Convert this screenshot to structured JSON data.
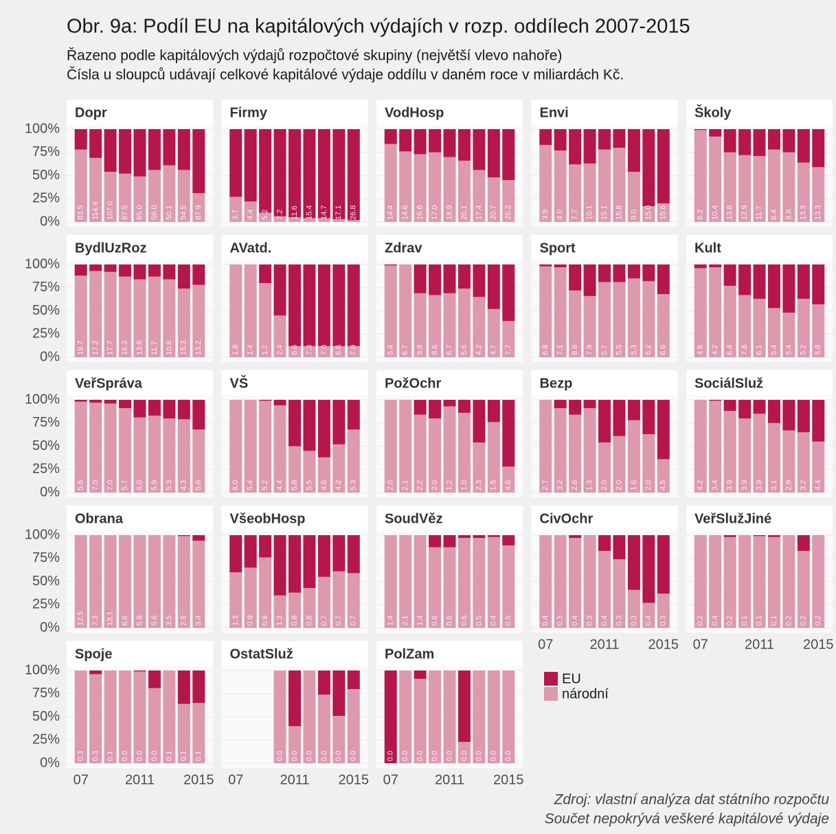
{
  "chart_data": {
    "type": "bar",
    "stacked": true,
    "title": "Obr. 9a: Podíl EU na kapitálových výdajích v rozp. oddílech 2007-2015",
    "subtitle": [
      "Řazeno podle kapitálových výdajů rozpočtové skupiny (největší vlevo nahoře)",
      "Čísla u sloupců udávají celkové kapitálové výdaje oddílu v daném roce v miliardách Kč."
    ],
    "source": [
      "Zdroj: vlastní analýza dat státního rozpočtu",
      "Součet nepokrývá veškeré kapitálové výdaje"
    ],
    "categories": [
      "07",
      null,
      null,
      null,
      "2011",
      null,
      null,
      null,
      "2015"
    ],
    "ylim": [
      0,
      100
    ],
    "yticks": [
      {
        "value": 0,
        "label": "0%"
      },
      {
        "value": 25,
        "label": "25%"
      },
      {
        "value": 50,
        "label": "50%"
      },
      {
        "value": 75,
        "label": "75%"
      },
      {
        "value": 100,
        "label": "100%"
      }
    ],
    "grid": true,
    "series": [
      {
        "name": "EU",
        "color": "#b5174b"
      },
      {
        "name": "národní",
        "color": "#dc9aac"
      }
    ],
    "facets": [
      {
        "title": "Dopr",
        "values": [
          [
            22,
            31,
            46,
            48,
            51,
            44,
            39,
            44,
            69
          ],
          [
            78,
            69,
            54,
            52,
            49,
            56,
            61,
            56,
            31
          ]
        ],
        "totals": [
          83.5,
          114.4,
          107.0,
          87.5,
          65.0,
          58.0,
          50.1,
          54.5,
          87.9
        ],
        "value_labels": [
          "83.5",
          "114.4",
          "107.0",
          "87.5",
          "65.0",
          "58.0",
          "50.1",
          "54.5",
          "87.9"
        ]
      },
      {
        "title": "Firmy",
        "values": [
          [
            73,
            78,
            90,
            94,
            95,
            96,
            96,
            97,
            98
          ],
          [
            27,
            22,
            10,
            6,
            5,
            4,
            4,
            3,
            2
          ]
        ],
        "totals": [
          3.7,
          4.4,
          5.2,
          7.2,
          11.6,
          15.4,
          14.7,
          17.1,
          26.8
        ],
        "value_labels": [
          "3.7",
          "4.4",
          "5.2",
          "7.2",
          "11.6",
          "15.4",
          "14.7",
          "17.1",
          "26.8"
        ]
      },
      {
        "title": "VodHosp",
        "values": [
          [
            16,
            24,
            27,
            25,
            30,
            34,
            44,
            52,
            55
          ],
          [
            84,
            76,
            73,
            75,
            70,
            66,
            56,
            48,
            45
          ]
        ],
        "totals": [
          14.4,
          14.6,
          16.6,
          17.0,
          18.9,
          20.1,
          17.4,
          20.7,
          25.2
        ],
        "value_labels": [
          "14.4",
          "14.6",
          "16.6",
          "17.0",
          "18.9",
          "20.1",
          "17.4",
          "20.7",
          "25.2"
        ]
      },
      {
        "title": "Envi",
        "values": [
          [
            17,
            23,
            38,
            37,
            22,
            20,
            46,
            83,
            80
          ],
          [
            83,
            77,
            62,
            63,
            78,
            80,
            54,
            17,
            20
          ]
        ],
        "totals": [
          3.9,
          4.0,
          7.7,
          10.1,
          15.1,
          15.8,
          9.0,
          15.0,
          15.6
        ],
        "value_labels": [
          "3.9",
          "4.0",
          "7.7",
          "10.1",
          "15.1",
          "15.8",
          "9.0",
          "15.0",
          "15.6"
        ]
      },
      {
        "title": "Školy",
        "values": [
          [
            1,
            8,
            25,
            28,
            29,
            22,
            25,
            36,
            41
          ],
          [
            99,
            92,
            75,
            72,
            71,
            78,
            75,
            64,
            59
          ]
        ],
        "totals": [
          8.2,
          10.4,
          13.8,
          12.9,
          11.7,
          8.4,
          9.8,
          13.3,
          13.3
        ],
        "value_labels": [
          "8.2",
          "10.4",
          "13.8",
          "12.9",
          "11.7",
          "8.4",
          "9.8",
          "13.3",
          "13.3"
        ]
      },
      {
        "title": "BydlUzRoz",
        "values": [
          [
            12,
            7,
            8,
            13,
            16,
            13,
            16,
            26,
            22
          ],
          [
            88,
            93,
            92,
            87,
            84,
            87,
            84,
            74,
            78
          ]
        ],
        "totals": [
          19.7,
          17.2,
          17.7,
          16.3,
          13.6,
          11.7,
          10.8,
          15.3,
          13.2
        ],
        "value_labels": [
          "19.7",
          "17.2",
          "17.7",
          "16.3",
          "13.6",
          "11.7",
          "10.8",
          "15.3",
          "13.2"
        ]
      },
      {
        "title": "AVatd.",
        "values": [
          [
            0,
            0,
            20,
            55,
            88,
            88,
            88,
            88,
            88
          ],
          [
            100,
            100,
            80,
            45,
            12,
            12,
            12,
            12,
            12
          ]
        ],
        "totals": [
          1.8,
          1.4,
          1.7,
          2.4,
          8.6,
          7.3,
          7.0,
          6.6,
          7.9
        ],
        "value_labels": [
          "1.8",
          "1.4",
          "1.7",
          "2.4",
          "8.6",
          "7.3",
          "7.0",
          "6.6",
          "7.9"
        ]
      },
      {
        "title": "Zdrav",
        "values": [
          [
            1,
            0,
            31,
            33,
            31,
            26,
            35,
            48,
            61
          ],
          [
            99,
            100,
            69,
            67,
            69,
            74,
            65,
            52,
            39
          ]
        ],
        "totals": [
          5.4,
          6.7,
          9.9,
          8.6,
          6.7,
          5.6,
          4.2,
          4.7,
          7.7
        ],
        "value_labels": [
          "5.4",
          "6.7",
          "9.9",
          "8.6",
          "6.7",
          "5.6",
          "4.2",
          "4.7",
          "7.7"
        ]
      },
      {
        "title": "Sport",
        "values": [
          [
            2,
            3,
            28,
            34,
            19,
            19,
            15,
            18,
            32
          ],
          [
            98,
            97,
            72,
            66,
            81,
            81,
            85,
            82,
            68
          ]
        ],
        "totals": [
          6.8,
          7.1,
          8.8,
          7.9,
          5.7,
          5.5,
          5.3,
          6.2,
          6.6
        ],
        "value_labels": [
          "6.8",
          "7.1",
          "8.8",
          "7.9",
          "5.7",
          "5.5",
          "5.3",
          "6.2",
          "6.6"
        ]
      },
      {
        "title": "Kult",
        "values": [
          [
            4,
            3,
            23,
            33,
            37,
            47,
            52,
            37,
            43
          ],
          [
            96,
            97,
            77,
            67,
            63,
            53,
            48,
            63,
            57
          ]
        ],
        "totals": [
          4.6,
          4.2,
          6.4,
          7.8,
          6.1,
          5.4,
          5.4,
          5.2,
          5.8
        ],
        "value_labels": [
          "4.6",
          "4.2",
          "6.4",
          "7.8",
          "6.1",
          "5.4",
          "5.4",
          "5.2",
          "5.8"
        ]
      },
      {
        "title": "VeřSpráva",
        "values": [
          [
            2,
            3,
            4,
            9,
            19,
            17,
            20,
            21,
            32
          ],
          [
            98,
            97,
            96,
            91,
            81,
            83,
            80,
            79,
            68
          ]
        ],
        "totals": [
          5.6,
          7.0,
          7.0,
          5.7,
          6.0,
          5.9,
          5.3,
          4.3,
          5.6
        ],
        "value_labels": [
          "5.6",
          "7.0",
          "7.0",
          "5.7",
          "6.0",
          "5.9",
          "5.3",
          "4.3",
          "5.6"
        ]
      },
      {
        "title": "VŠ",
        "values": [
          [
            0,
            0,
            1,
            6,
            50,
            55,
            62,
            48,
            32
          ],
          [
            100,
            100,
            99,
            94,
            50,
            45,
            38,
            52,
            68
          ]
        ],
        "totals": [
          6.0,
          5.4,
          5.2,
          4.4,
          5.8,
          5.5,
          4.6,
          4.2,
          5.3
        ],
        "value_labels": [
          "6.0",
          "5.4",
          "5.2",
          "4.4",
          "5.8",
          "5.5",
          "4.6",
          "4.2",
          "5.3"
        ]
      },
      {
        "title": "PožOchr",
        "values": [
          [
            0,
            0,
            16,
            20,
            7,
            14,
            46,
            24,
            72
          ],
          [
            100,
            100,
            84,
            80,
            93,
            86,
            54,
            76,
            28
          ]
        ],
        "totals": [
          2.0,
          2.1,
          2.2,
          2.0,
          1.2,
          1.0,
          2.3,
          1.5,
          4.6
        ],
        "value_labels": [
          "2.0",
          "2.1",
          "2.2",
          "2.0",
          "1.2",
          "1.0",
          "2.3",
          "1.5",
          "4.6"
        ]
      },
      {
        "title": "Bezp",
        "values": [
          [
            0,
            9,
            16,
            9,
            46,
            39,
            22,
            37,
            64
          ],
          [
            100,
            91,
            84,
            91,
            54,
            61,
            78,
            63,
            36
          ]
        ],
        "totals": [
          2.7,
          3.2,
          2.6,
          1.3,
          2.0,
          2.0,
          1.6,
          2.0,
          4.5
        ],
        "value_labels": [
          "2.7",
          "3.2",
          "2.6",
          "1.3",
          "2.0",
          "2.0",
          "1.6",
          "2.0",
          "4.5"
        ]
      },
      {
        "title": "SociálSluž",
        "values": [
          [
            0,
            1,
            12,
            20,
            15,
            25,
            33,
            35,
            45
          ],
          [
            100,
            99,
            88,
            80,
            85,
            75,
            67,
            65,
            55
          ]
        ],
        "totals": [
          4.2,
          3.4,
          3.9,
          3.9,
          3.9,
          3.1,
          2.9,
          3.2,
          4.4
        ],
        "value_labels": [
          "4.2",
          "3.4",
          "3.9",
          "3.9",
          "3.9",
          "3.1",
          "2.9",
          "3.2",
          "4.4"
        ]
      },
      {
        "title": "Obrana",
        "values": [
          [
            0,
            0,
            0,
            0,
            0,
            0,
            0,
            1,
            6
          ],
          [
            100,
            100,
            100,
            100,
            100,
            100,
            100,
            99,
            94
          ]
        ],
        "totals": [
          12.5,
          7.3,
          13.1,
          6.6,
          5.9,
          5.6,
          3.5,
          2.6,
          3.4
        ],
        "value_labels": [
          "12.5",
          "7.3",
          "13.1",
          "6.6",
          "5.9",
          "5.6",
          "3.5",
          "2.6",
          "3.4"
        ]
      },
      {
        "title": "VšeobHosp",
        "values": [
          [
            40,
            35,
            24,
            65,
            62,
            57,
            45,
            39,
            41
          ],
          [
            60,
            65,
            76,
            35,
            38,
            43,
            55,
            61,
            59
          ]
        ],
        "totals": [
          1.3,
          0.9,
          0.9,
          1.3,
          0.8,
          0.8,
          0.7,
          0.7,
          0.7
        ],
        "value_labels": [
          "1.3",
          "0.9",
          "0.9",
          "1.3",
          "0.8",
          "0.8",
          "0.7",
          "0.7",
          "0.7"
        ]
      },
      {
        "title": "SoudVěz",
        "values": [
          [
            0,
            0,
            0,
            13,
            13,
            3,
            3,
            2,
            11
          ],
          [
            100,
            100,
            100,
            87,
            87,
            97,
            97,
            98,
            89
          ]
        ],
        "totals": [
          1.4,
          2.1,
          1.4,
          0.6,
          0.5,
          0.6,
          0.5,
          0.4,
          0.5
        ],
        "value_labels": [
          "1.4",
          "2.1",
          "1.4",
          "0.6",
          "0.5",
          "0.6",
          "0.5",
          "0.4",
          "0.5"
        ]
      },
      {
        "title": "CivOchr",
        "values": [
          [
            0,
            0,
            3,
            0,
            17,
            26,
            59,
            73,
            63
          ],
          [
            100,
            100,
            97,
            100,
            83,
            74,
            41,
            27,
            37
          ]
        ],
        "totals": [
          0.4,
          0.3,
          0.4,
          0.3,
          0.4,
          0.3,
          0.3,
          0.4,
          0.3
        ],
        "value_labels": [
          "0.4",
          "0.3",
          "0.4",
          "0.3",
          "0.4",
          "0.3",
          "0.3",
          "0.4",
          "0.3"
        ]
      },
      {
        "title": "VeřSlužJiné",
        "values": [
          [
            0,
            0,
            2,
            0,
            1,
            2,
            0,
            17,
            0
          ],
          [
            100,
            100,
            98,
            100,
            99,
            98,
            100,
            83,
            100
          ]
        ],
        "totals": [
          0.2,
          0.4,
          0.2,
          0.1,
          0.1,
          0.1,
          0.2,
          0.2,
          0.2
        ],
        "value_labels": [
          "0.2",
          "0.4",
          "0.2",
          "0.1",
          "0.1",
          "0.1",
          "0.2",
          "0.2",
          "0.2"
        ]
      },
      {
        "title": "Spoje",
        "values": [
          [
            0,
            4,
            0,
            0,
            1,
            19,
            0,
            36,
            35
          ],
          [
            100,
            96,
            100,
            100,
            99,
            81,
            100,
            64,
            65
          ]
        ],
        "totals": [
          0.3,
          0.3,
          0.1,
          0.0,
          0.0,
          0.0,
          0.1,
          0.1,
          0.1
        ],
        "value_labels": [
          "0.3",
          "0.3",
          "0.1",
          "0.0",
          "0.0",
          "0.0",
          "0.1",
          "0.1",
          "0.1"
        ]
      },
      {
        "title": "OstatSluž",
        "values": [
          [
            null,
            null,
            null,
            0,
            60,
            0,
            26,
            49,
            20
          ],
          [
            null,
            null,
            null,
            100,
            40,
            100,
            74,
            51,
            80
          ]
        ],
        "totals": [
          null,
          null,
          null,
          0.0,
          0.0,
          0.0,
          0.0,
          0.0,
          0.0
        ],
        "value_labels": [
          null,
          null,
          null,
          "0.0",
          "0.0",
          "0.0",
          "0.0",
          "0.0",
          "0.0"
        ]
      },
      {
        "title": "PolZam",
        "values": [
          [
            100,
            0,
            9,
            0,
            0,
            77,
            0,
            0,
            0
          ],
          [
            0,
            100,
            91,
            100,
            100,
            23,
            100,
            100,
            100
          ]
        ],
        "totals": [
          0.0,
          0.0,
          0.0,
          0.0,
          0.0,
          0.0,
          0.0,
          0.0,
          0.0
        ],
        "value_labels": [
          "0.0",
          "0.0",
          "0.0",
          "0.0",
          "0.0",
          "0.0",
          "0.0",
          "0.0",
          "0.0"
        ]
      }
    ]
  }
}
